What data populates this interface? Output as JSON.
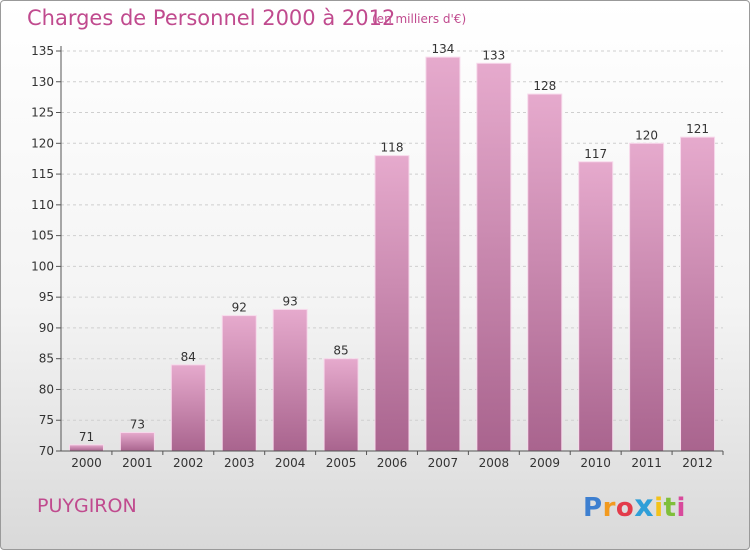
{
  "header": {
    "title": "Charges de Personnel 2000 à 2012",
    "subtitle": "(en milliers d'€)"
  },
  "footer": {
    "commune": "PUYGIRON",
    "logo": {
      "letters": [
        "P",
        "r",
        "o",
        "x",
        "i",
        "t",
        "i"
      ],
      "colors": [
        "#3d7fd0",
        "#f29a1f",
        "#e33b4a",
        "#2f9fd8",
        "#f3c21a",
        "#7fbf3a",
        "#d84a9c"
      ]
    }
  },
  "colors": {
    "bar_top": "#e6aacd",
    "bar_bottom": "#a9648e",
    "bar_edge": "#f7d9eb",
    "grid": "#cfcfcf",
    "axis": "#555555"
  },
  "chart_data": {
    "type": "bar",
    "title": "Charges de Personnel 2000 à 2012",
    "subtitle": "(en milliers d'€)",
    "xlabel": "",
    "ylabel": "",
    "categories": [
      "2000",
      "2001",
      "2002",
      "2003",
      "2004",
      "2005",
      "2006",
      "2007",
      "2008",
      "2009",
      "2010",
      "2011",
      "2012"
    ],
    "values": [
      71,
      73,
      84,
      92,
      93,
      85,
      118,
      134,
      133,
      128,
      117,
      120,
      121
    ],
    "ylim": [
      70,
      135
    ],
    "yticks": [
      70,
      75,
      80,
      85,
      90,
      95,
      100,
      105,
      110,
      115,
      120,
      125,
      130,
      135
    ],
    "grid": true,
    "data_labels": true,
    "legend": "none"
  }
}
